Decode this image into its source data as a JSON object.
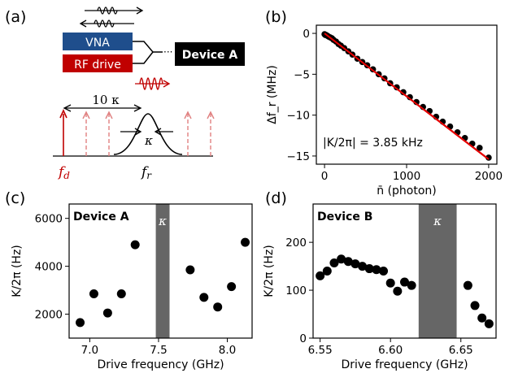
{
  "panels": {
    "a": {
      "label": "(a)",
      "vna_label": "VNA",
      "rf_drive_label": "RF drive",
      "device_label": "Device A",
      "spacing_label": "10 κ",
      "kappa_label": "κ",
      "fd_label": "f",
      "fd_sub": "d",
      "fr_label": "f",
      "fr_sub": "r",
      "colors": {
        "vna_fill": "#1f4e8c",
        "rf_fill": "#c00000",
        "device_fill": "#000000",
        "drive_red": "#c00000",
        "dashed_red": "#e08080"
      }
    },
    "b": {
      "label": "(b)",
      "annotation": "|K/2π| = 3.85 kHz"
    },
    "c": {
      "label": "(c)",
      "device_label": "Device A",
      "kappa_label": "κ"
    },
    "d": {
      "label": "(d)",
      "device_label": "Device B",
      "kappa_label": "κ"
    }
  },
  "chart_data": [
    {
      "panel": "b",
      "type": "scatter",
      "xlabel": "n̄ (photon)",
      "ylabel": "Δf_r (MHz)",
      "xlim": [
        -100,
        2100
      ],
      "ylim": [
        -16,
        1
      ],
      "xticks": [
        0,
        1000,
        2000
      ],
      "yticks": [
        0,
        -5,
        -10,
        -15
      ],
      "x": [
        0,
        10,
        20,
        35,
        50,
        70,
        90,
        110,
        140,
        170,
        200,
        240,
        290,
        340,
        400,
        460,
        520,
        590,
        660,
        730,
        800,
        880,
        960,
        1040,
        1120,
        1200,
        1280,
        1360,
        1440,
        1530,
        1620,
        1710,
        1800,
        1890,
        2000
      ],
      "y": [
        -0.1,
        -0.2,
        -0.2,
        -0.3,
        -0.4,
        -0.5,
        -0.6,
        -0.8,
        -1.0,
        -1.3,
        -1.5,
        -1.8,
        -2.2,
        -2.6,
        -3.1,
        -3.5,
        -3.9,
        -4.4,
        -5.0,
        -5.5,
        -6.1,
        -6.6,
        -7.2,
        -7.8,
        -8.4,
        -9.0,
        -9.5,
        -10.2,
        -10.8,
        -11.4,
        -12.1,
        -12.8,
        -13.5,
        -14.0,
        -15.2
      ],
      "fit": {
        "x": [
          0,
          2000
        ],
        "y": [
          0,
          -15.4
        ],
        "color": "#e60000"
      },
      "marker_color": "#000000"
    },
    {
      "panel": "c",
      "type": "scatter",
      "xlabel": "Drive frequency (GHz)",
      "ylabel": "K/2π (Hz)",
      "xlim": [
        6.85,
        8.18
      ],
      "ylim": [
        1000,
        6600
      ],
      "xticks": [
        7.0,
        7.5,
        8.0
      ],
      "xtick_labels": [
        "7.0",
        "7.5",
        "8.0"
      ],
      "yticks": [
        2000,
        4000,
        6000
      ],
      "x": [
        6.93,
        7.03,
        7.13,
        7.23,
        7.33,
        7.73,
        7.83,
        7.93,
        8.03,
        8.13
      ],
      "y": [
        1650,
        2850,
        2050,
        2850,
        4900,
        3850,
        2700,
        2300,
        3150,
        5000
      ],
      "band": {
        "x0": 7.48,
        "x1": 7.58,
        "color": "#666666"
      },
      "marker_color": "#000000"
    },
    {
      "panel": "d",
      "type": "scatter",
      "xlabel": "Drive frequency (GHz)",
      "ylabel": "K/2π (Hz)",
      "xlim": [
        6.545,
        6.675
      ],
      "ylim": [
        0,
        280
      ],
      "xticks": [
        6.55,
        6.6,
        6.65
      ],
      "xtick_labels": [
        "6.55",
        "6.60",
        "6.65"
      ],
      "yticks": [
        0,
        100,
        200
      ],
      "x": [
        6.55,
        6.555,
        6.56,
        6.565,
        6.57,
        6.575,
        6.58,
        6.585,
        6.59,
        6.595,
        6.6,
        6.605,
        6.61,
        6.615,
        6.655,
        6.66,
        6.665,
        6.67
      ],
      "y": [
        130,
        140,
        157,
        165,
        160,
        155,
        150,
        145,
        143,
        140,
        115,
        98,
        117,
        110,
        110,
        68,
        42,
        30
      ],
      "band": {
        "x0": 6.62,
        "x1": 6.647,
        "color": "#666666"
      },
      "marker_color": "#000000"
    }
  ]
}
